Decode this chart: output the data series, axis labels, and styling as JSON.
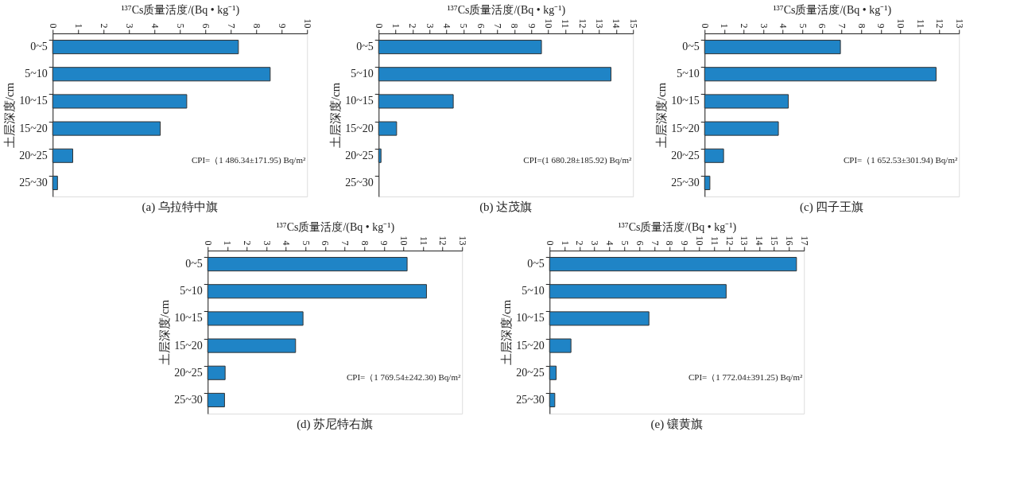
{
  "chart_data": [
    {
      "type": "bar",
      "orientation": "horizontal",
      "title": "(a) 乌拉特中旗",
      "xlabel": "¹³⁷Cs质量活度/(Bq • kg⁻¹)",
      "ylabel": "土层深度/cm",
      "categories": [
        "0~5",
        "5~10",
        "10~15",
        "15~20",
        "20~25",
        "25~30"
      ],
      "values": [
        7.3,
        8.55,
        5.27,
        4.23,
        0.79,
        0.19
      ],
      "color": "#1f84c6",
      "xlim": [
        0,
        10
      ],
      "xticks": [
        0,
        1,
        2,
        3,
        4,
        5,
        6,
        7,
        8,
        9,
        10
      ],
      "annotations": [
        "CPI=（1 486.34±171.95) Bq/m²"
      ]
    },
    {
      "type": "bar",
      "orientation": "horizontal",
      "title": "(b) 达茂旗",
      "xlabel": "¹³⁷Cs质量活度/(Bq • kg⁻¹)",
      "ylabel": "土层深度/cm",
      "categories": [
        "0~5",
        "5~10",
        "10~15",
        "15~20",
        "20~25",
        "25~30"
      ],
      "values": [
        9.6,
        13.7,
        4.4,
        1.06,
        0.14,
        null
      ],
      "color": "#1f84c6",
      "xlim": [
        0,
        15
      ],
      "xticks": [
        0,
        1,
        2,
        3,
        4,
        5,
        6,
        7,
        8,
        9,
        10,
        11,
        12,
        13,
        14,
        15
      ],
      "annotations": [
        "CPI=(1 680.28±185.92) Bq/m²"
      ]
    },
    {
      "type": "bar",
      "orientation": "horizontal",
      "title": "(c) 四子王旗",
      "xlabel": "¹³⁷Cs质量活度/(Bq • kg⁻¹)",
      "ylabel": "土层深度/cm",
      "categories": [
        "0~5",
        "5~10",
        "10~15",
        "15~20",
        "20~25",
        "25~30"
      ],
      "values": [
        6.94,
        11.83,
        4.28,
        3.77,
        0.97,
        0.27
      ],
      "color": "#1f84c6",
      "xlim": [
        0,
        13
      ],
      "xticks": [
        0,
        1,
        2,
        3,
        4,
        5,
        6,
        7,
        8,
        9,
        10,
        11,
        12,
        13
      ],
      "annotations": [
        "CPI=（1 652.53±301.94) Bq/m²"
      ]
    },
    {
      "type": "bar",
      "orientation": "horizontal",
      "title": "(d) 苏尼特右旗",
      "xlabel": "¹³⁷Cs质量活度/(Bq • kg⁻¹)",
      "ylabel": "土层深度/cm",
      "categories": [
        "0~5",
        "5~10",
        "10~15",
        "15~20",
        "20~25",
        "25~30"
      ],
      "values": [
        10.19,
        11.18,
        4.87,
        4.49,
        0.89,
        0.86
      ],
      "color": "#1f84c6",
      "xlim": [
        0,
        13
      ],
      "xticks": [
        0,
        1,
        2,
        3,
        4,
        5,
        6,
        7,
        8,
        9,
        10,
        11,
        12,
        13
      ],
      "annotations": [
        "CPI=（1 769.54±242.30) Bq/m²"
      ]
    },
    {
      "type": "bar",
      "orientation": "horizontal",
      "title": "(e) 镶黄旗",
      "xlabel": "¹³⁷Cs质量活度/(Bq • kg⁻¹)",
      "ylabel": "土层深度/cm",
      "categories": [
        "0~5",
        "5~10",
        "10~15",
        "15~20",
        "20~25",
        "25~30"
      ],
      "values": [
        16.5,
        11.8,
        6.64,
        1.43,
        0.44,
        0.35
      ],
      "color": "#1f84c6",
      "xlim": [
        0,
        17
      ],
      "xticks": [
        0,
        1,
        2,
        3,
        4,
        5,
        6,
        7,
        8,
        9,
        10,
        11,
        12,
        13,
        14,
        15,
        16,
        17
      ],
      "annotations": [
        "CPI=（1 772.04±391.25) Bq/m²"
      ]
    }
  ]
}
